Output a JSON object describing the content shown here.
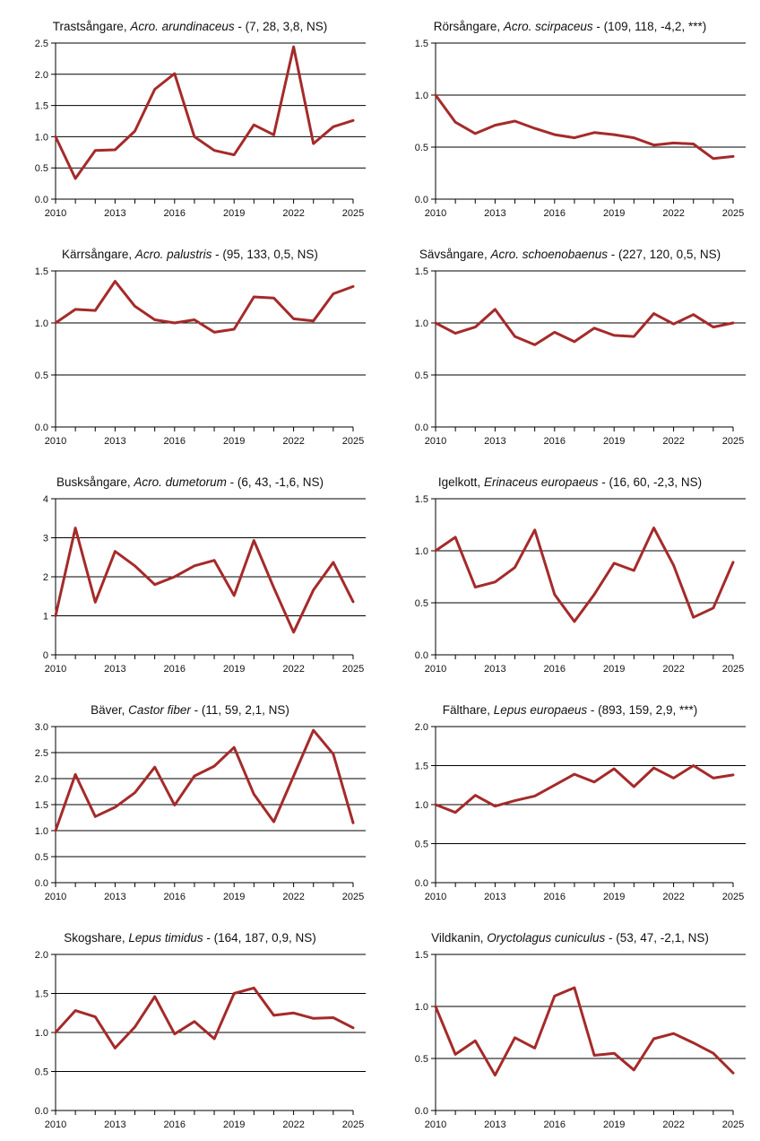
{
  "line_color": "#a52a2a",
  "chart_data": [
    {
      "type": "line",
      "title_common": "Trastsångare, ",
      "title_latin": "Acro. arundinaceus",
      "title_stats": " - (7, 28, 3,8, NS)",
      "x": [
        2010,
        2011,
        2012,
        2013,
        2014,
        2015,
        2016,
        2017,
        2018,
        2019,
        2020,
        2021,
        2022,
        2023,
        2024,
        2025
      ],
      "values": [
        1.0,
        0.33,
        0.78,
        0.79,
        1.09,
        1.76,
        2.01,
        1.0,
        0.78,
        0.71,
        1.19,
        1.03,
        2.44,
        0.89,
        1.16,
        1.26
      ],
      "ylim": [
        0,
        2.5
      ],
      "yticks": [
        "0.0",
        "0.5",
        "1.0",
        "1.5",
        "2.0",
        "2.5"
      ],
      "xticks": [
        "2010",
        "2013",
        "2016",
        "2019",
        "2022",
        "2025"
      ]
    },
    {
      "type": "line",
      "title_common": "Rörsångare, ",
      "title_latin": "Acro. scirpaceus",
      "title_stats": " - (109, 118, -4,2, ***)",
      "x": [
        2010,
        2011,
        2012,
        2013,
        2014,
        2015,
        2016,
        2017,
        2018,
        2019,
        2020,
        2021,
        2022,
        2023,
        2024,
        2025
      ],
      "values": [
        1.0,
        0.74,
        0.63,
        0.71,
        0.75,
        0.68,
        0.62,
        0.59,
        0.64,
        0.62,
        0.59,
        0.52,
        0.54,
        0.53,
        0.39,
        0.41
      ],
      "ylim": [
        0,
        1.5
      ],
      "yticks": [
        "0.0",
        "0.5",
        "1.0",
        "1.5"
      ],
      "xticks": [
        "2010",
        "2013",
        "2016",
        "2019",
        "2022",
        "2025"
      ]
    },
    {
      "type": "line",
      "title_common": "Kärrsångare, ",
      "title_latin": "Acro. palustris",
      "title_stats": " - (95, 133, 0,5, NS)",
      "x": [
        2010,
        2011,
        2012,
        2013,
        2014,
        2015,
        2016,
        2017,
        2018,
        2019,
        2020,
        2021,
        2022,
        2023,
        2024,
        2025
      ],
      "values": [
        1.0,
        1.13,
        1.12,
        1.4,
        1.16,
        1.03,
        1.0,
        1.03,
        0.91,
        0.94,
        1.25,
        1.24,
        1.04,
        1.02,
        1.28,
        1.35
      ],
      "ylim": [
        0,
        1.5
      ],
      "yticks": [
        "0.0",
        "0.5",
        "1.0",
        "1.5"
      ],
      "xticks": [
        "2010",
        "2013",
        "2016",
        "2019",
        "2022",
        "2025"
      ]
    },
    {
      "type": "line",
      "title_common": "Sävsångare, ",
      "title_latin": "Acro. schoenobaenus",
      "title_stats": " - (227, 120, 0,5, NS)",
      "x": [
        2010,
        2011,
        2012,
        2013,
        2014,
        2015,
        2016,
        2017,
        2018,
        2019,
        2020,
        2021,
        2022,
        2023,
        2024,
        2025
      ],
      "values": [
        1.0,
        0.9,
        0.96,
        1.13,
        0.87,
        0.79,
        0.91,
        0.82,
        0.95,
        0.88,
        0.87,
        1.09,
        0.99,
        1.08,
        0.96,
        1.0
      ],
      "ylim": [
        0,
        1.5
      ],
      "yticks": [
        "0.0",
        "0.5",
        "1.0",
        "1.5"
      ],
      "xticks": [
        "2010",
        "2013",
        "2016",
        "2019",
        "2022",
        "2025"
      ]
    },
    {
      "type": "line",
      "title_common": "Busksångare, ",
      "title_latin": "Acro. dumetorum",
      "title_stats": " - (6, 43, -1,6, NS)",
      "x": [
        2010,
        2011,
        2012,
        2013,
        2014,
        2015,
        2016,
        2017,
        2018,
        2019,
        2020,
        2021,
        2022,
        2023,
        2024,
        2025
      ],
      "values": [
        1.0,
        3.25,
        1.35,
        2.65,
        2.28,
        1.8,
        2.0,
        2.28,
        2.42,
        1.52,
        2.93,
        1.72,
        0.58,
        1.66,
        2.37,
        1.36
      ],
      "ylim": [
        0,
        4
      ],
      "yticks": [
        "0",
        "1",
        "2",
        "3",
        "4"
      ],
      "xticks": [
        "2010",
        "2013",
        "2016",
        "2019",
        "2022",
        "2025"
      ]
    },
    {
      "type": "line",
      "title_common": "Igelkott, ",
      "title_latin": "Erinaceus europaeus",
      "title_stats": " - (16, 60, -2,3, NS)",
      "x": [
        2010,
        2011,
        2012,
        2013,
        2014,
        2015,
        2016,
        2017,
        2018,
        2019,
        2020,
        2021,
        2022,
        2023,
        2024,
        2025
      ],
      "values": [
        1.0,
        1.13,
        0.65,
        0.7,
        0.84,
        1.2,
        0.58,
        0.32,
        0.58,
        0.88,
        0.81,
        1.22,
        0.86,
        0.36,
        0.45,
        0.89
      ],
      "ylim": [
        0,
        1.5
      ],
      "yticks": [
        "0.0",
        "0.5",
        "1.0",
        "1.5"
      ],
      "xticks": [
        "2010",
        "2013",
        "2016",
        "2019",
        "2022",
        "2025"
      ]
    },
    {
      "type": "line",
      "title_common": "Bäver, ",
      "title_latin": "Castor fiber",
      "title_stats": " - (11, 59, 2,1, NS)",
      "x": [
        2010,
        2011,
        2012,
        2013,
        2014,
        2015,
        2016,
        2017,
        2018,
        2019,
        2020,
        2021,
        2022,
        2023,
        2024,
        2025
      ],
      "values": [
        1.0,
        2.08,
        1.27,
        1.45,
        1.73,
        2.22,
        1.49,
        2.05,
        2.24,
        2.6,
        1.7,
        1.17,
        2.05,
        2.93,
        2.47,
        1.15
      ],
      "ylim": [
        0,
        3.0
      ],
      "yticks": [
        "0.0",
        "0.5",
        "1.0",
        "1.5",
        "2.0",
        "2.5",
        "3.0"
      ],
      "xticks": [
        "2010",
        "2013",
        "2016",
        "2019",
        "2022",
        "2025"
      ]
    },
    {
      "type": "line",
      "title_common": "Fälthare, ",
      "title_latin": "Lepus europaeus",
      "title_stats": " - (893, 159, 2,9, ***)",
      "x": [
        2010,
        2011,
        2012,
        2013,
        2014,
        2015,
        2016,
        2017,
        2018,
        2019,
        2020,
        2021,
        2022,
        2023,
        2024,
        2025
      ],
      "values": [
        1.0,
        0.9,
        1.12,
        0.98,
        1.05,
        1.11,
        1.25,
        1.39,
        1.29,
        1.46,
        1.23,
        1.47,
        1.34,
        1.5,
        1.34,
        1.38
      ],
      "ylim": [
        0,
        2.0
      ],
      "yticks": [
        "0.0",
        "0.5",
        "1.0",
        "1.5",
        "2.0"
      ],
      "xticks": [
        "2010",
        "2013",
        "2016",
        "2019",
        "2022",
        "2025"
      ]
    },
    {
      "type": "line",
      "title_common": "Skogshare, ",
      "title_latin": "Lepus timidus",
      "title_stats": " - (164, 187, 0,9, NS)",
      "x": [
        2010,
        2011,
        2012,
        2013,
        2014,
        2015,
        2016,
        2017,
        2018,
        2019,
        2020,
        2021,
        2022,
        2023,
        2024,
        2025
      ],
      "values": [
        1.0,
        1.28,
        1.2,
        0.8,
        1.07,
        1.46,
        0.98,
        1.14,
        0.92,
        1.5,
        1.57,
        1.22,
        1.25,
        1.18,
        1.19,
        1.06
      ],
      "ylim": [
        0,
        2.0
      ],
      "yticks": [
        "0.0",
        "0.5",
        "1.0",
        "1.5",
        "2.0"
      ],
      "xticks": [
        "2010",
        "2013",
        "2016",
        "2019",
        "2022",
        "2025"
      ]
    },
    {
      "type": "line",
      "title_common": "Vildkanin, ",
      "title_latin": "Oryctolagus cuniculus",
      "title_stats": " - (53, 47, -2,1, NS)",
      "x": [
        2010,
        2011,
        2012,
        2013,
        2014,
        2015,
        2016,
        2017,
        2018,
        2019,
        2020,
        2021,
        2022,
        2023,
        2024,
        2025
      ],
      "values": [
        1.0,
        0.54,
        0.67,
        0.34,
        0.7,
        0.6,
        1.1,
        1.18,
        0.53,
        0.55,
        0.39,
        0.69,
        0.74,
        0.65,
        0.55,
        0.36
      ],
      "ylim": [
        0,
        1.5
      ],
      "yticks": [
        "0.0",
        "0.5",
        "1.0",
        "1.5"
      ],
      "xticks": [
        "2010",
        "2013",
        "2016",
        "2019",
        "2022",
        "2025"
      ]
    }
  ]
}
